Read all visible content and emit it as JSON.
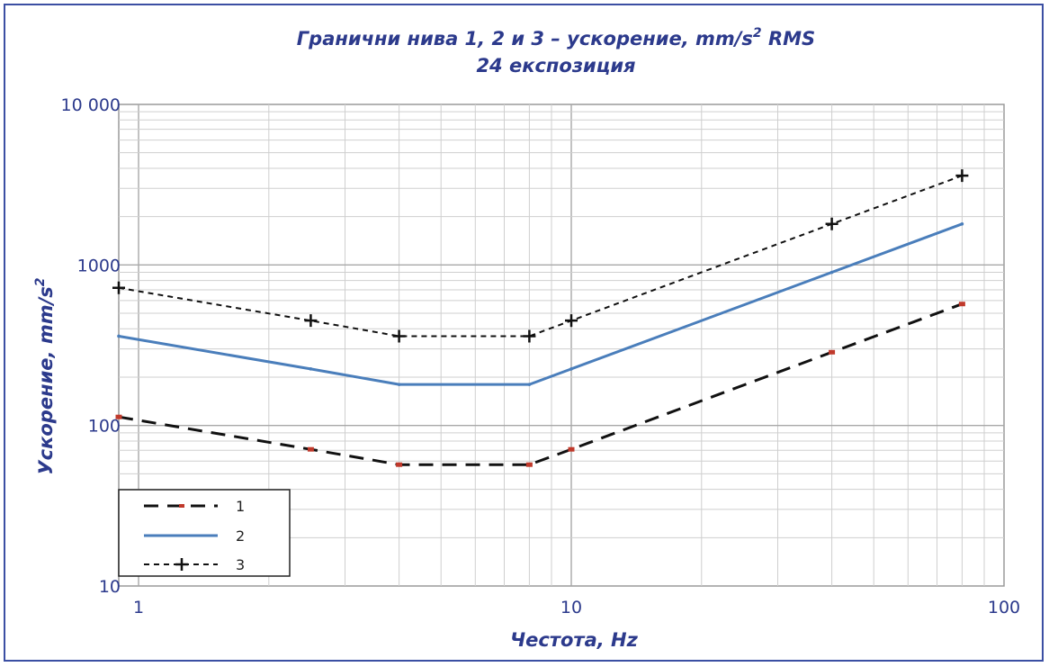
{
  "chart_data": {
    "type": "line",
    "title_line1": "Гранични нива 1, 2 и 3 – ускорение, mm/s",
    "title_sup": "2",
    "title_tail": " RMS",
    "title_line2": "24 експозиция",
    "xlabel": "Честота, Hz",
    "ylabel_main": "Ускорение, mm/s",
    "ylabel_sup": "2",
    "x_scale": "log",
    "y_scale": "log",
    "xlim": [
      0.9,
      100
    ],
    "ylim": [
      10,
      10000
    ],
    "x_ticks": [
      {
        "value": 1,
        "label": "1"
      },
      {
        "value": 10,
        "label": "10"
      },
      {
        "value": 100,
        "label": "100"
      }
    ],
    "y_ticks": [
      {
        "value": 10,
        "label": "10"
      },
      {
        "value": 100,
        "label": "100"
      },
      {
        "value": 1000,
        "label": "1000"
      },
      {
        "value": 10000,
        "label": "10 000"
      }
    ],
    "grid": true,
    "legend_position": "bottom-left",
    "series": [
      {
        "name": "1",
        "color": "#111111",
        "marker_color": "#c0392b",
        "style": "long-dash",
        "x": [
          0.9,
          2.5,
          4,
          8,
          10,
          40,
          80
        ],
        "y": [
          113,
          71,
          57,
          57,
          71,
          286,
          571
        ]
      },
      {
        "name": "2",
        "color": "#4a7ebb",
        "marker_color": "#4a7ebb",
        "style": "solid",
        "x": [
          0.9,
          2.5,
          4,
          8,
          10,
          40,
          80
        ],
        "y": [
          360,
          225,
          180,
          180,
          225,
          900,
          1800
        ]
      },
      {
        "name": "3",
        "color": "#111111",
        "marker_color": "#111111",
        "style": "short-dash-plus",
        "x": [
          0.9,
          2.5,
          4,
          8,
          10,
          40,
          80
        ],
        "y": [
          720,
          450,
          360,
          360,
          450,
          1800,
          3600
        ]
      }
    ]
  }
}
